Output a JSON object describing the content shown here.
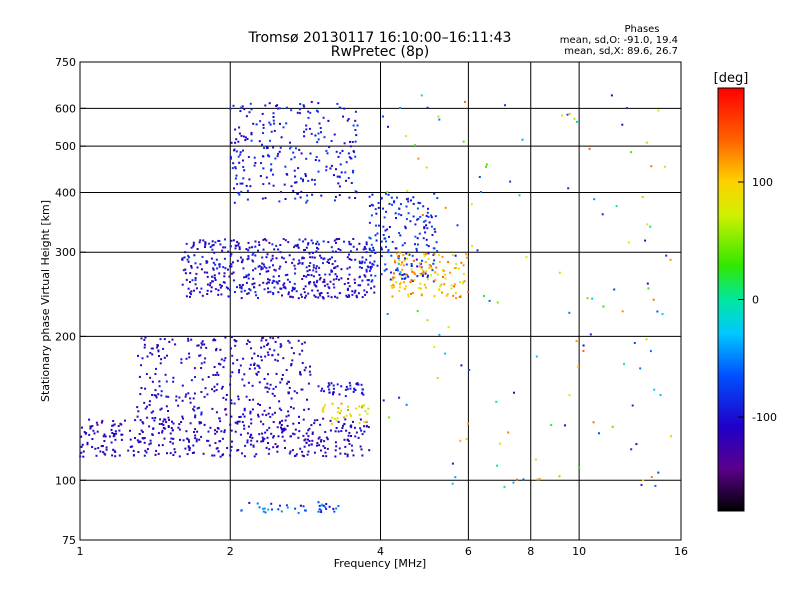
{
  "chart_data": {
    "type": "scatter",
    "title": "Tromsø 20130117 16:10:00–16:11:43",
    "subtitle": "RwPretec (8p)",
    "xlabel": "Frequency [MHz]",
    "ylabel": "Stationary phase Virtual Height [km]",
    "x_scale": "log",
    "y_scale": "log",
    "xlim": [
      1,
      16
    ],
    "ylim": [
      75,
      750
    ],
    "x_ticks": [
      1,
      2,
      4,
      6,
      8,
      10,
      16
    ],
    "y_ticks": [
      75,
      100,
      200,
      300,
      400,
      500,
      600,
      750
    ],
    "x_gridlines": [
      2,
      4,
      6,
      8,
      10
    ],
    "y_gridlines": [
      100,
      200,
      300,
      400,
      500,
      600
    ],
    "grid": true,
    "phase_stats": {
      "header": "Phases",
      "line1": "mean, sd,O: -91.0, 19.4",
      "line2": "mean, sd,X:  89.6, 26.7"
    },
    "colorbar": {
      "label": "[deg]",
      "min": -180,
      "max": 180,
      "ticks": [
        100,
        0,
        -100
      ]
    },
    "clusters": [
      {
        "region": "E-region trace",
        "x_range": [
          2.1,
          3.3
        ],
        "y_range": [
          85,
          90
        ],
        "phase_deg": [
          -110,
          -30
        ],
        "approx_points": 40
      },
      {
        "region": "F1 lower band",
        "x_range": [
          1.0,
          3.8
        ],
        "y_range": [
          112,
          135
        ],
        "phase_deg": [
          -130,
          -95
        ],
        "approx_points": 420
      },
      {
        "region": "F1 upper band",
        "x_range": [
          1.3,
          2.9
        ],
        "y_range": [
          135,
          200
        ],
        "phase_deg": [
          -130,
          -90
        ],
        "approx_points": 320
      },
      {
        "region": "Oblique band",
        "x_range": [
          3.0,
          3.7
        ],
        "y_range": [
          150,
          160
        ],
        "phase_deg": [
          -110,
          -90
        ],
        "approx_points": 40
      },
      {
        "region": "X-mode echoes",
        "x_range": [
          3.0,
          3.8
        ],
        "y_range": [
          130,
          145
        ],
        "phase_deg": [
          60,
          130
        ],
        "approx_points": 35
      },
      {
        "region": "F2 main band",
        "x_range": [
          1.6,
          3.9
        ],
        "y_range": [
          240,
          320
        ],
        "phase_deg": [
          -130,
          -80
        ],
        "approx_points": 520
      },
      {
        "region": "F2 cusp rise",
        "x_range": [
          3.8,
          5.2
        ],
        "y_range": [
          260,
          400
        ],
        "phase_deg": [
          -110,
          -60
        ],
        "approx_points": 180
      },
      {
        "region": "F2 X-mode",
        "x_range": [
          4.2,
          6.0
        ],
        "y_range": [
          240,
          300
        ],
        "phase_deg": [
          70,
          140
        ],
        "approx_points": 120
      },
      {
        "region": "Multi-hop upper",
        "x_range": [
          2.0,
          3.6
        ],
        "y_range": [
          380,
          620
        ],
        "phase_deg": [
          -120,
          -70
        ],
        "approx_points": 260
      },
      {
        "region": "High-frequency scatter",
        "x_range": [
          4.0,
          15.5
        ],
        "y_range": [
          95,
          650
        ],
        "phase_deg": [
          -120,
          140
        ],
        "approx_points": 140
      }
    ]
  }
}
